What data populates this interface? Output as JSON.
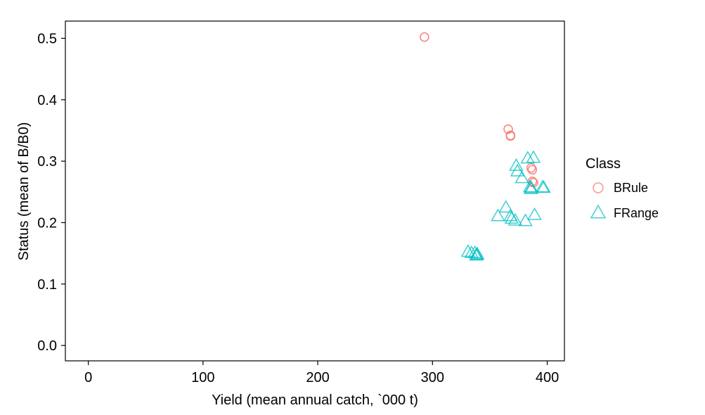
{
  "chart_data": {
    "type": "scatter",
    "title": "",
    "xlabel": "Yield (mean annual catch, `000 t)",
    "ylabel": "Status (mean of B/B0)",
    "xlim": [
      -20,
      415
    ],
    "ylim": [
      -0.025,
      0.528
    ],
    "x_ticks": [
      0,
      100,
      200,
      300,
      400
    ],
    "x_tick_labels": [
      "0",
      "100",
      "200",
      "300",
      "400"
    ],
    "y_ticks": [
      0.0,
      0.1,
      0.2,
      0.3,
      0.4,
      0.5
    ],
    "y_tick_labels": [
      "0.0",
      "0.1",
      "0.2",
      "0.3",
      "0.4",
      "0.5"
    ],
    "grid": false,
    "legend": {
      "title": "Class",
      "position": "right",
      "entries": [
        {
          "label": "BRule",
          "shape": "circle",
          "color": "#F8766D"
        },
        {
          "label": "FRange",
          "shape": "triangle",
          "color": "#00BFC4"
        }
      ]
    },
    "series": [
      {
        "name": "BRule",
        "shape": "circle",
        "color": "#F8766D",
        "points": [
          {
            "x": 293,
            "y": 0.502
          },
          {
            "x": 366,
            "y": 0.352
          },
          {
            "x": 368,
            "y": 0.342
          },
          {
            "x": 368,
            "y": 0.341
          },
          {
            "x": 386,
            "y": 0.289
          },
          {
            "x": 387,
            "y": 0.286
          },
          {
            "x": 387,
            "y": 0.267
          },
          {
            "x": 388,
            "y": 0.265
          }
        ]
      },
      {
        "name": "FRange",
        "shape": "triangle",
        "color": "#00BFC4",
        "points": [
          {
            "x": 331,
            "y": 0.152
          },
          {
            "x": 334,
            "y": 0.15
          },
          {
            "x": 337,
            "y": 0.15
          },
          {
            "x": 339,
            "y": 0.148
          },
          {
            "x": 339,
            "y": 0.147
          },
          {
            "x": 338,
            "y": 0.146
          },
          {
            "x": 357,
            "y": 0.21
          },
          {
            "x": 364,
            "y": 0.224
          },
          {
            "x": 368,
            "y": 0.21
          },
          {
            "x": 369,
            "y": 0.206
          },
          {
            "x": 372,
            "y": 0.203
          },
          {
            "x": 373,
            "y": 0.292
          },
          {
            "x": 374,
            "y": 0.283
          },
          {
            "x": 378,
            "y": 0.272
          },
          {
            "x": 381,
            "y": 0.202
          },
          {
            "x": 383,
            "y": 0.304
          },
          {
            "x": 385,
            "y": 0.257
          },
          {
            "x": 386,
            "y": 0.256
          },
          {
            "x": 386,
            "y": 0.254
          },
          {
            "x": 388,
            "y": 0.305
          },
          {
            "x": 389,
            "y": 0.212
          },
          {
            "x": 396,
            "y": 0.257
          },
          {
            "x": 397,
            "y": 0.256
          }
        ]
      }
    ]
  }
}
